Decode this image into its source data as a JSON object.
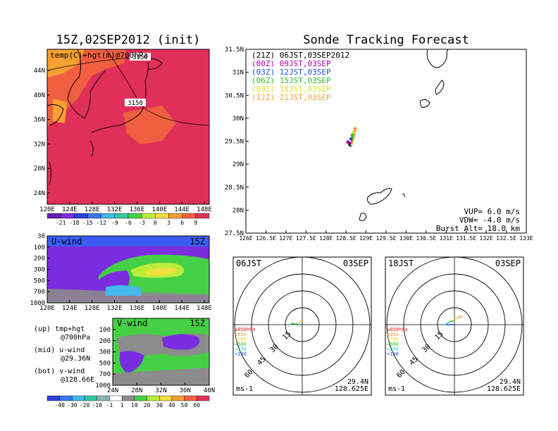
{
  "left_title": "15Z,02SEP2012 (init)",
  "right_title": "Sonde Tracking Forecast",
  "colors": {
    "hot": "#e0305a",
    "warm": "#f06040",
    "orange": "#f5a030",
    "violet": "#7a2ee0",
    "purple": "#9a1ee6",
    "blue_band": "#3a5cf0",
    "green": "#45d045",
    "lime": "#b8ee3a",
    "yellow": "#f0e040",
    "gray": "#8c8c8c",
    "coast": "#000000"
  },
  "temp_panel": {
    "label": "temp(C)+hgt(m)@700hPa",
    "contour_labels": [
      "3150",
      "3150"
    ],
    "y_ticks": [
      "44N",
      "40N",
      "36N",
      "32N",
      "28N",
      "24N"
    ],
    "x_ticks": [
      "120E",
      "124E",
      "128E",
      "132E",
      "136E",
      "140E",
      "144E",
      "148E"
    ],
    "colorbar_labels": [
      "-21",
      "-18",
      "-15",
      "-12",
      "-9",
      "-6",
      "-3",
      "0",
      "3",
      "6",
      "9"
    ],
    "colorbar_colors": [
      "#6a1bb0",
      "#7a2ee0",
      "#2f3fd8",
      "#3a78f0",
      "#45b8f0",
      "#30c8a0",
      "#45d045",
      "#b8ee3a",
      "#f0e040",
      "#f5a030",
      "#f06040",
      "#e0305a"
    ]
  },
  "u_panel": {
    "label": "U-wind",
    "time": "15Z",
    "y_ticks": [
      "30",
      "100",
      "200",
      "300",
      "500",
      "700",
      "1000"
    ],
    "x_ticks": [
      "120E",
      "124E",
      "128E",
      "132E",
      "136E",
      "140E",
      "144E",
      "148E"
    ]
  },
  "v_panel": {
    "label": "V-wind",
    "time": "15Z",
    "y_ticks": [
      "100",
      "200",
      "300",
      "500",
      "700",
      "1000"
    ],
    "x_ticks": [
      "24N",
      "28N",
      "32N",
      "36N",
      "40N"
    ],
    "colorbar_labels": [
      "-40",
      "-30",
      "-20",
      "-10",
      "-1",
      "1",
      "10",
      "20",
      "30",
      "40",
      "50",
      "60"
    ],
    "colorbar_colors": [
      "#2f3fd8",
      "#3a78f0",
      "#45b8f0",
      "#30c8a0",
      "#8fb0b0",
      "#ffffff",
      "#8c8c8c",
      "#45d045",
      "#b8ee3a",
      "#f0e040",
      "#f5a030",
      "#f06040",
      "#e0305a"
    ]
  },
  "legend_notes": {
    "up_1": "(up) tmp+hgt",
    "up_2": "@700hPa",
    "mid_1": "(mid) u-wind",
    "mid_2": "@29.36N",
    "bot_1": "(bot) v-wind",
    "bot_2": "@128.66E"
  },
  "track_panel": {
    "y_ticks": [
      "31.5N",
      "31N",
      "30.5N",
      "30N",
      "29.5N",
      "29N",
      "28.5N",
      "28N",
      "27.5N"
    ],
    "x_ticks": [
      "126E",
      "126.5E",
      "127E",
      "127.5E",
      "128E",
      "128.5E",
      "129E",
      "129.5E",
      "130E",
      "130.5E",
      "131E",
      "131.5E",
      "132E",
      "132.5E",
      "133E"
    ],
    "params": {
      "vup": "VUP= 6.0 m/s",
      "vdw": "VDW= -4.0 m/s",
      "burst": "Burst Alt= 18.0 km"
    }
  },
  "chart_data": {
    "type": "scatter",
    "title": "Sonde Tracking Forecast",
    "xlim": [
      126,
      133
    ],
    "ylim": [
      27.5,
      31.5
    ],
    "series": [
      {
        "name": "(21Z) 06JST,03SEP2012",
        "color": "#000000",
        "x": [
          128.62,
          128.64,
          128.6
        ],
        "y": [
          29.4,
          29.45,
          29.43
        ]
      },
      {
        "name": "(00Z) 09JST,03SEP",
        "color": "#b000b0",
        "x": [
          128.6,
          128.63,
          128.55
        ],
        "y": [
          29.4,
          29.47,
          29.48
        ]
      },
      {
        "name": "(03Z) 12JST,03SEP",
        "color": "#2050e0",
        "x": [
          128.62,
          128.66,
          128.63
        ],
        "y": [
          29.42,
          29.5,
          29.55
        ]
      },
      {
        "name": "(06Z) 15JST,03SEP",
        "color": "#30c030",
        "x": [
          128.63,
          128.68,
          128.66
        ],
        "y": [
          29.42,
          29.55,
          29.63
        ]
      },
      {
        "name": "(09Z) 18JST,03SEP",
        "color": "#e0e030",
        "x": [
          128.64,
          128.71,
          128.7
        ],
        "y": [
          29.43,
          29.6,
          29.7
        ]
      },
      {
        "name": "(12Z) 21JST,03SEP",
        "color": "#f0a040",
        "x": [
          128.65,
          128.72,
          128.73
        ],
        "y": [
          29.44,
          29.65,
          29.77
        ]
      }
    ]
  },
  "polar_panels": [
    {
      "time": "06JST",
      "date": "03SEP",
      "rings": [
        "15",
        "30",
        "45",
        "60"
      ],
      "unit": "ms-1",
      "lat": "29.4N",
      "lon": "128.625E",
      "levels": [
        {
          "label": "≥850hPa",
          "color": "#e02020"
        },
        {
          "label": "<850",
          "color": "#f0a040"
        },
        {
          "label": "<700",
          "color": "#e0e030"
        },
        {
          "label": "<500",
          "color": "#30c030"
        },
        {
          "label": "<250",
          "color": "#30c8c8"
        },
        {
          "label": "<100",
          "color": "#2050e0"
        }
      ]
    },
    {
      "time": "18JST",
      "date": "03SEP",
      "rings": [
        "15",
        "30",
        "45",
        "60"
      ],
      "unit": "ms-1",
      "lat": "29.4N",
      "lon": "128.625E",
      "levels": [
        {
          "label": "≥850hPa",
          "color": "#e02020"
        },
        {
          "label": "<850",
          "color": "#f0a040"
        },
        {
          "label": "<700",
          "color": "#e0e030"
        },
        {
          "label": "<500",
          "color": "#30c030"
        },
        {
          "label": "<250",
          "color": "#30c8c8"
        },
        {
          "label": "<100",
          "color": "#2050e0"
        }
      ]
    }
  ]
}
